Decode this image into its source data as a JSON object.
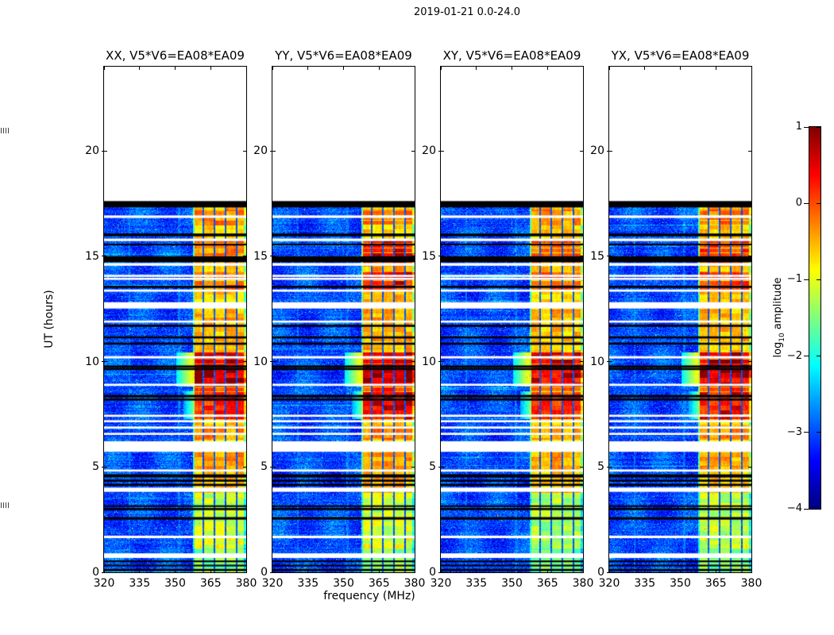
{
  "chart_data": {
    "type": "heatmap",
    "title": "2019-01-21 0.0-24.0",
    "xlabel": "frequency (MHz)",
    "ylabel": "UT (hours)",
    "xlim": [
      320,
      380
    ],
    "ylim": [
      0,
      24
    ],
    "xticks": [
      320,
      335,
      350,
      365,
      380
    ],
    "yticks": [
      0,
      5,
      10,
      15,
      20
    ],
    "colormap": "jet",
    "grid": false,
    "colorbar": {
      "label": "log10 amplitude",
      "label_prefix": "log",
      "label_sub": "10",
      "label_suffix": " amplitude",
      "ticks": [
        1,
        0,
        -1,
        -2,
        -3,
        -4
      ],
      "vmin": -4,
      "vmax": 1,
      "position": "right"
    },
    "panels": [
      {
        "id": "xx",
        "title": "XX, V5*V6=EA08*EA09",
        "seed": 101,
        "band_profile": [
          [
            0,
            1.15,
            -1.5
          ],
          [
            1.15,
            1.75,
            -1.05
          ],
          [
            1.75,
            2.65,
            -1.15
          ],
          [
            2.65,
            3.8,
            -1.2
          ],
          [
            3.8,
            4.75,
            -0.55
          ],
          [
            4.75,
            5.7,
            -0.4
          ],
          [
            5.7,
            6.3,
            -0.85
          ],
          [
            6.3,
            6.95,
            -0.35
          ],
          [
            6.95,
            7.25,
            -0.65
          ],
          [
            7.25,
            8.6,
            0.2
          ],
          [
            8.6,
            8.85,
            0.05
          ],
          [
            8.85,
            10.45,
            0.5
          ],
          [
            10.45,
            11.9,
            -0.55
          ],
          [
            11.9,
            12.5,
            -0.5
          ],
          [
            12.5,
            13.35,
            -0.65
          ],
          [
            13.35,
            14.25,
            -0.25
          ],
          [
            14.25,
            14.7,
            -0.55
          ],
          [
            14.7,
            15.5,
            -0.4
          ],
          [
            15.5,
            15.85,
            0.0
          ],
          [
            15.85,
            16.5,
            -0.65
          ],
          [
            16.5,
            17.25,
            -0.3
          ],
          [
            17.25,
            17.45,
            -0.55
          ]
        ]
      },
      {
        "id": "yy",
        "title": "YY, V5*V6=EA08*EA09",
        "seed": 202,
        "band_profile": [
          [
            0,
            1.15,
            -1.45
          ],
          [
            1.15,
            1.75,
            -1.0
          ],
          [
            1.75,
            2.65,
            -1.1
          ],
          [
            2.65,
            3.8,
            -1.15
          ],
          [
            3.8,
            4.75,
            -0.45
          ],
          [
            4.75,
            5.7,
            -0.4
          ],
          [
            5.7,
            6.3,
            -0.8
          ],
          [
            6.3,
            6.95,
            -0.3
          ],
          [
            6.95,
            7.25,
            -0.6
          ],
          [
            7.25,
            8.6,
            0.3
          ],
          [
            8.6,
            8.85,
            0.1
          ],
          [
            8.85,
            10.45,
            0.62
          ],
          [
            10.45,
            11.9,
            -0.5
          ],
          [
            11.9,
            12.5,
            -0.45
          ],
          [
            12.5,
            13.35,
            -0.55
          ],
          [
            13.35,
            14.25,
            0.25
          ],
          [
            14.25,
            14.7,
            -0.45
          ],
          [
            14.7,
            15.5,
            0.3
          ],
          [
            15.5,
            15.85,
            0.35
          ],
          [
            15.85,
            16.5,
            -0.6
          ],
          [
            16.5,
            17.25,
            -0.15
          ],
          [
            17.25,
            17.45,
            -0.5
          ]
        ]
      },
      {
        "id": "xy",
        "title": "XY, V5*V6=EA08*EA09",
        "seed": 303,
        "band_profile": [
          [
            0,
            1.15,
            -1.6
          ],
          [
            1.15,
            1.75,
            -1.2
          ],
          [
            1.75,
            2.65,
            -1.35
          ],
          [
            2.65,
            3.8,
            -1.3
          ],
          [
            3.8,
            4.75,
            -0.6
          ],
          [
            4.75,
            5.7,
            -0.5
          ],
          [
            5.7,
            6.3,
            -0.9
          ],
          [
            6.3,
            6.95,
            -0.4
          ],
          [
            6.95,
            7.25,
            -0.7
          ],
          [
            7.25,
            8.6,
            0.12
          ],
          [
            8.6,
            8.85,
            0.0
          ],
          [
            8.85,
            10.45,
            0.38
          ],
          [
            10.45,
            11.9,
            -0.6
          ],
          [
            11.9,
            12.5,
            -0.55
          ],
          [
            12.5,
            13.35,
            -0.7
          ],
          [
            13.35,
            14.25,
            -0.2
          ],
          [
            14.25,
            14.7,
            -0.6
          ],
          [
            14.7,
            15.5,
            -0.1
          ],
          [
            15.5,
            15.85,
            0.1
          ],
          [
            15.85,
            16.5,
            -0.7
          ],
          [
            16.5,
            17.25,
            -0.35
          ],
          [
            17.25,
            17.45,
            -0.6
          ]
        ]
      },
      {
        "id": "yx",
        "title": "YX, V5*V6=EA08*EA09",
        "seed": 404,
        "band_profile": [
          [
            0,
            1.15,
            -1.5
          ],
          [
            1.15,
            1.75,
            -1.1
          ],
          [
            1.75,
            2.65,
            -1.2
          ],
          [
            2.65,
            3.8,
            -1.2
          ],
          [
            3.8,
            4.75,
            -0.55
          ],
          [
            4.75,
            5.7,
            -0.45
          ],
          [
            5.7,
            6.3,
            -0.85
          ],
          [
            6.3,
            6.95,
            -0.35
          ],
          [
            6.95,
            7.25,
            -0.65
          ],
          [
            7.25,
            8.6,
            0.25
          ],
          [
            8.6,
            8.85,
            0.05
          ],
          [
            8.85,
            10.45,
            0.55
          ],
          [
            10.45,
            11.9,
            -0.55
          ],
          [
            11.9,
            12.5,
            -0.5
          ],
          [
            12.5,
            13.35,
            -0.6
          ],
          [
            13.35,
            14.25,
            0.05
          ],
          [
            14.25,
            14.7,
            -0.5
          ],
          [
            14.7,
            15.5,
            0.05
          ],
          [
            15.5,
            15.85,
            0.2
          ],
          [
            15.85,
            16.5,
            -0.65
          ],
          [
            16.5,
            17.25,
            -0.2
          ],
          [
            17.25,
            17.45,
            -0.55
          ]
        ]
      }
    ],
    "spectrogram": {
      "observed_hours": [
        0,
        17.45
      ],
      "background_level": -3.45,
      "band": {
        "freq_range": [
          357.4,
          380
        ],
        "default_level": -0.8,
        "separators_mhz": [
          361.7,
          366.4,
          371.1,
          375.8
        ],
        "right_edge_dim_mhz": 378.9
      },
      "faint_columns_mhz": [
        330.5,
        351.5
      ],
      "white_gaps_hours": [
        [
          0.68,
          0.9
        ],
        [
          1.62,
          1.74
        ],
        [
          3.82,
          4.02
        ],
        [
          4.78,
          4.88
        ],
        [
          5.72,
          6.22
        ],
        [
          6.52,
          6.62
        ],
        [
          6.82,
          6.92
        ],
        [
          7.12,
          7.22
        ],
        [
          7.38,
          7.48
        ],
        [
          8.85,
          8.95
        ],
        [
          10.15,
          10.26
        ],
        [
          11.85,
          11.95
        ],
        [
          12.52,
          12.82
        ],
        [
          13.32,
          13.42
        ],
        [
          13.88,
          13.98
        ],
        [
          14.02,
          14.12
        ],
        [
          14.55,
          14.68
        ],
        [
          15.72,
          15.84
        ],
        [
          16.82,
          16.94
        ]
      ],
      "black_lines_hours": [
        [
          0.06,
          0.16
        ],
        [
          0.28,
          0.36
        ],
        [
          0.48,
          0.56
        ],
        [
          2.5,
          2.62
        ],
        [
          2.95,
          3.05
        ],
        [
          3.1,
          3.18
        ],
        [
          4.1,
          4.2
        ],
        [
          4.3,
          4.4
        ],
        [
          4.5,
          4.65
        ],
        [
          8.15,
          8.25
        ],
        [
          8.3,
          8.42
        ],
        [
          9.6,
          9.7
        ],
        [
          9.72,
          9.82
        ],
        [
          10.8,
          10.9
        ],
        [
          11.1,
          11.2
        ],
        [
          11.65,
          11.75
        ],
        [
          13.5,
          13.6
        ],
        [
          14.72,
          15.0
        ],
        [
          15.52,
          15.6
        ],
        [
          15.95,
          16.08
        ],
        [
          17.32,
          17.62
        ]
      ],
      "extensions": [
        {
          "hours": [
            8.85,
            10.45
          ],
          "freq": [
            350.5,
            357.4
          ],
          "level_from": -2.2,
          "level_to": -0.8
        },
        {
          "hours": [
            7.3,
            8.6
          ],
          "freq": [
            353.5,
            357.4
          ],
          "level_from": -2.6,
          "level_to": -1.6
        }
      ]
    }
  }
}
